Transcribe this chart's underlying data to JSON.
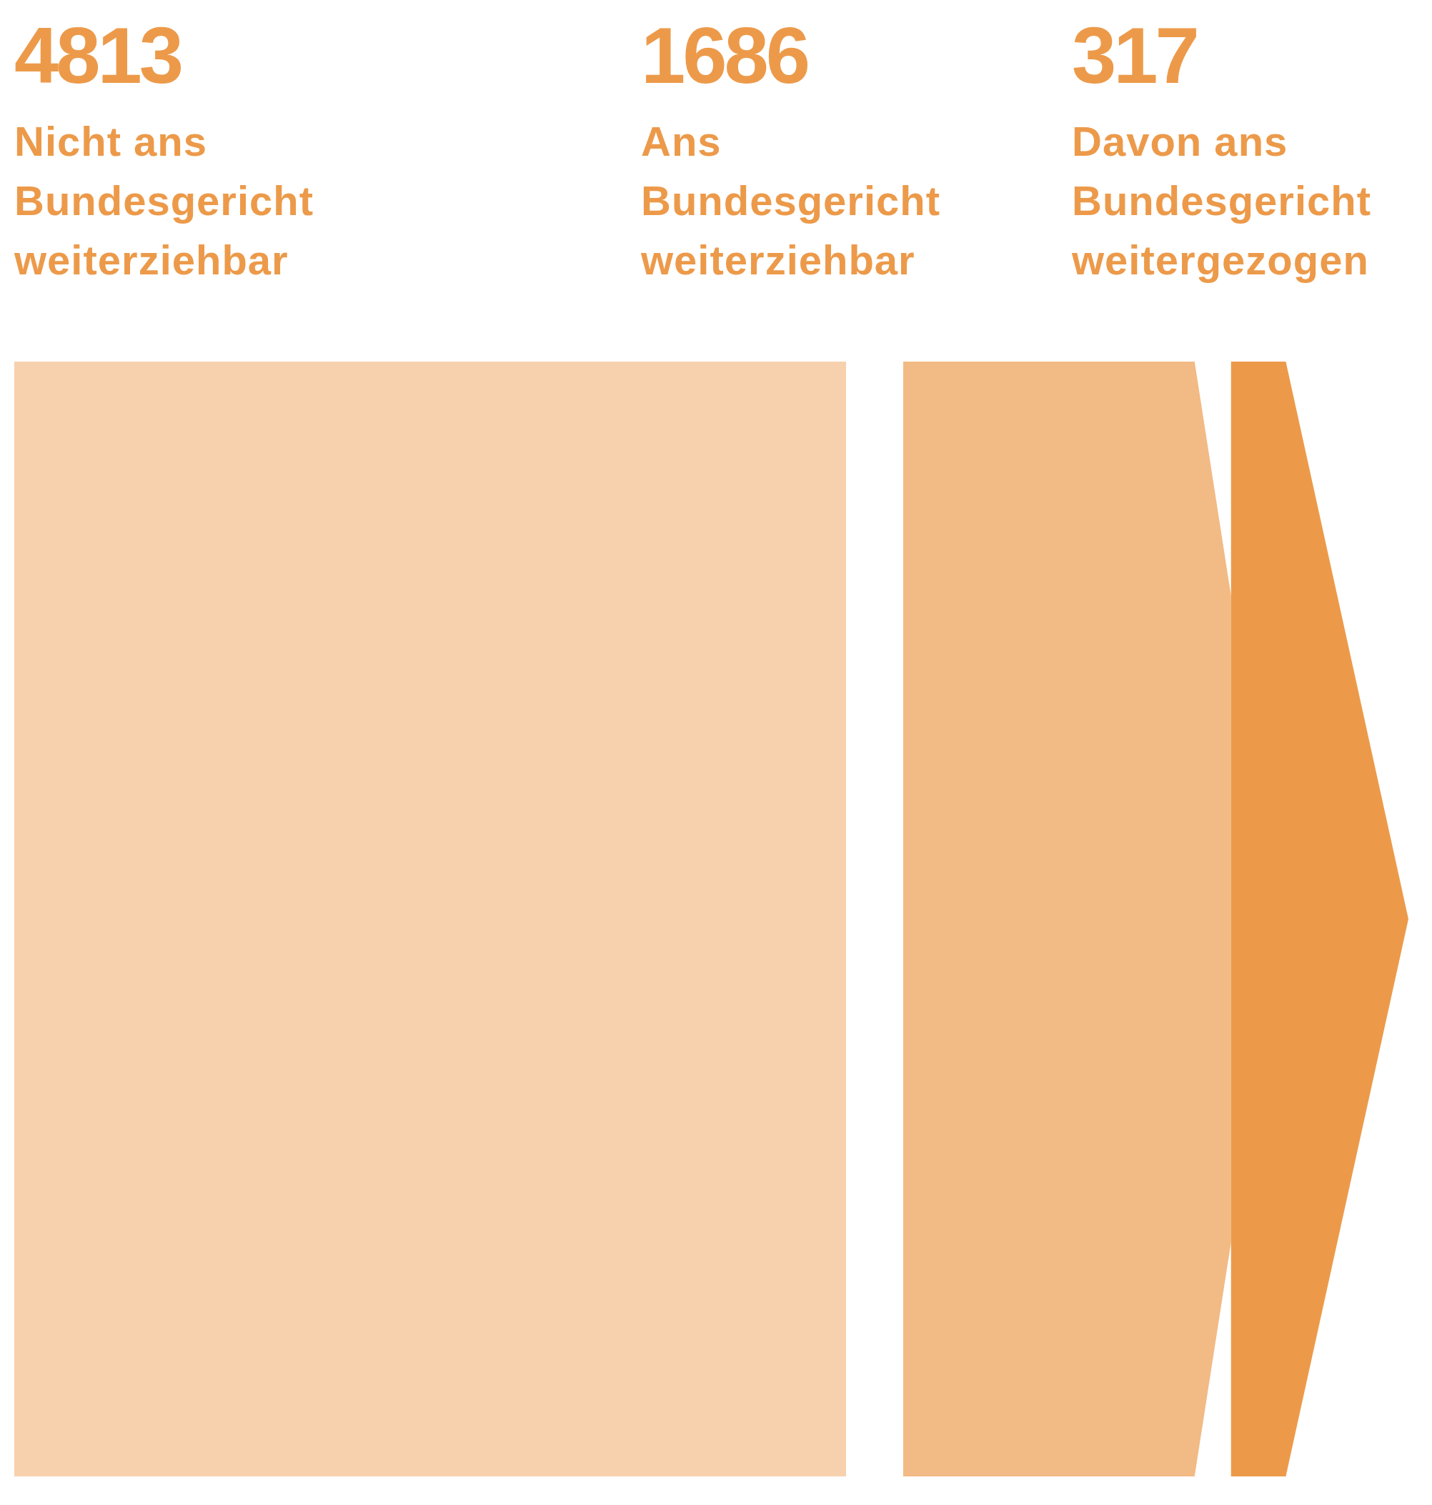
{
  "chart_data": {
    "type": "other",
    "categories": [
      "Nicht ans Bundesgericht weiterziehbar",
      "Ans Bundesgericht weiterziehbar",
      "Davon ans Bundesgericht weitergezogen"
    ],
    "values": [
      4813,
      1686,
      317
    ],
    "colors": [
      "#f7d1ad",
      "#f2ba84",
      "#ec9a4a"
    ],
    "data_labels": true
  }
}
